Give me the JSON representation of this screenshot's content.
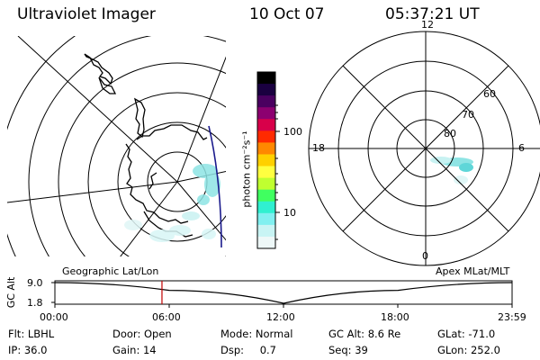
{
  "header": {
    "instrument": "Ultraviolet Imager",
    "date": "10 Oct 07",
    "time": "05:37:21 UT"
  },
  "colorbar": {
    "unit_label": "photon cm⁻²s⁻¹",
    "ticks": [
      "100",
      "10"
    ],
    "colors": [
      "#000000",
      "#1a0040",
      "#4a0060",
      "#8c0070",
      "#d8004a",
      "#ff2a00",
      "#ff8800",
      "#ffd000",
      "#ffff40",
      "#c0ff30",
      "#40ff60",
      "#30f0d0",
      "#80f0f0",
      "#c8f4f4",
      "#eef8f8"
    ]
  },
  "left_map": {
    "label": "Geographic Lat/Lon"
  },
  "right_map": {
    "label": "Apex MLat/MLT",
    "mlt_labels": {
      "top": "12",
      "left": "18",
      "right": "6",
      "bottom": "0"
    },
    "lat_labels": [
      "60",
      "70",
      "80"
    ]
  },
  "altitude_plot": {
    "axis_label": "GC Alt",
    "y_ticks": [
      "9.0",
      "1.8"
    ],
    "x_ticks": [
      "00:00",
      "06:00",
      "12:00",
      "18:00",
      "23:59"
    ],
    "marker_time": "05:37",
    "chart_data": {
      "type": "line",
      "x": [
        "00:00",
        "06:00",
        "12:00",
        "18:00",
        "23:59"
      ],
      "series": [
        {
          "values": [
            9.0,
            6.3,
            1.8,
            6.3,
            9.0
          ]
        }
      ],
      "ylim": [
        1.8,
        9.0
      ]
    }
  },
  "footer": {
    "rows": [
      [
        {
          "label": "Flt:",
          "value": "LBHL"
        },
        {
          "label": "Door:",
          "value": "Open"
        },
        {
          "label": "Mode:",
          "value": "Normal"
        },
        {
          "label": "GC Alt:",
          "value": "8.6 Re"
        },
        {
          "label": "GLat:",
          "value": "-71.0"
        }
      ],
      [
        {
          "label": "IP:",
          "value": "36.0"
        },
        {
          "label": "Gain:",
          "value": "14"
        },
        {
          "label": "Dsp:",
          "value": "0.7"
        },
        {
          "label": "Seq:",
          "value": "39"
        },
        {
          "label": "GLon:",
          "value": "252.0"
        }
      ]
    ]
  }
}
